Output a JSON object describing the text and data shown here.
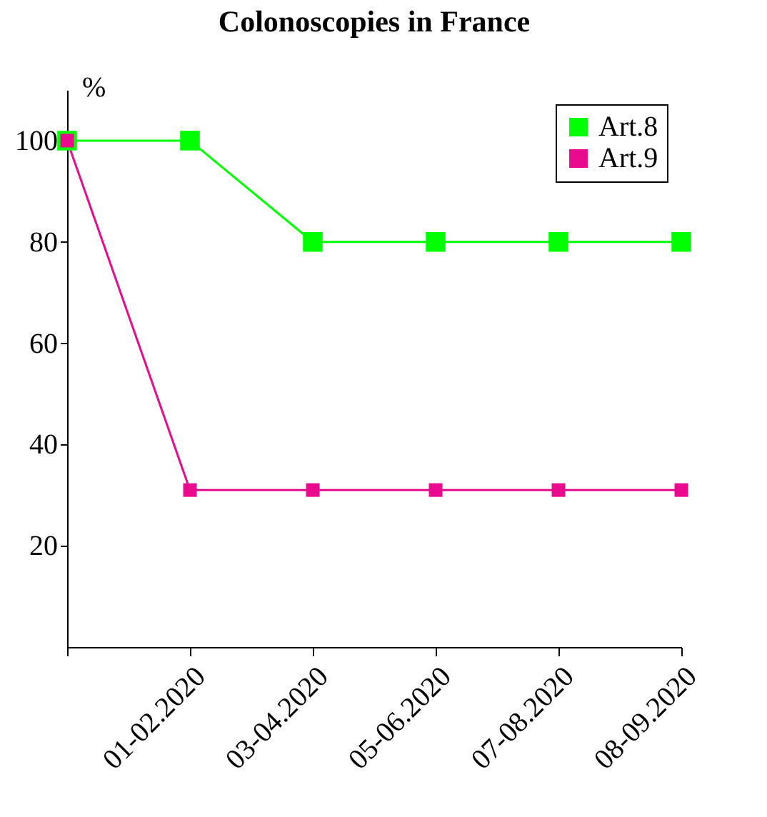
{
  "chart_data": {
    "type": "line",
    "title": "Colonoscopies in France",
    "ylabel": "%",
    "categories": [
      null,
      "01-02.2020",
      "03-04.2020",
      "05-06.2020",
      "07-08.2020",
      "08-09.2020"
    ],
    "series": [
      {
        "name": "Art.8",
        "color": "#00ff00",
        "values": [
          100,
          100,
          80,
          80,
          80,
          80
        ]
      },
      {
        "name": "Art.9",
        "color": "#ea0a8e",
        "values": [
          100,
          31,
          31,
          31,
          31,
          31
        ]
      }
    ],
    "ylim": [
      0,
      110
    ],
    "yticks": [
      20,
      40,
      60,
      80,
      100
    ],
    "grid": false,
    "legend": "top right",
    "marker": "square",
    "line_style": "solid"
  }
}
